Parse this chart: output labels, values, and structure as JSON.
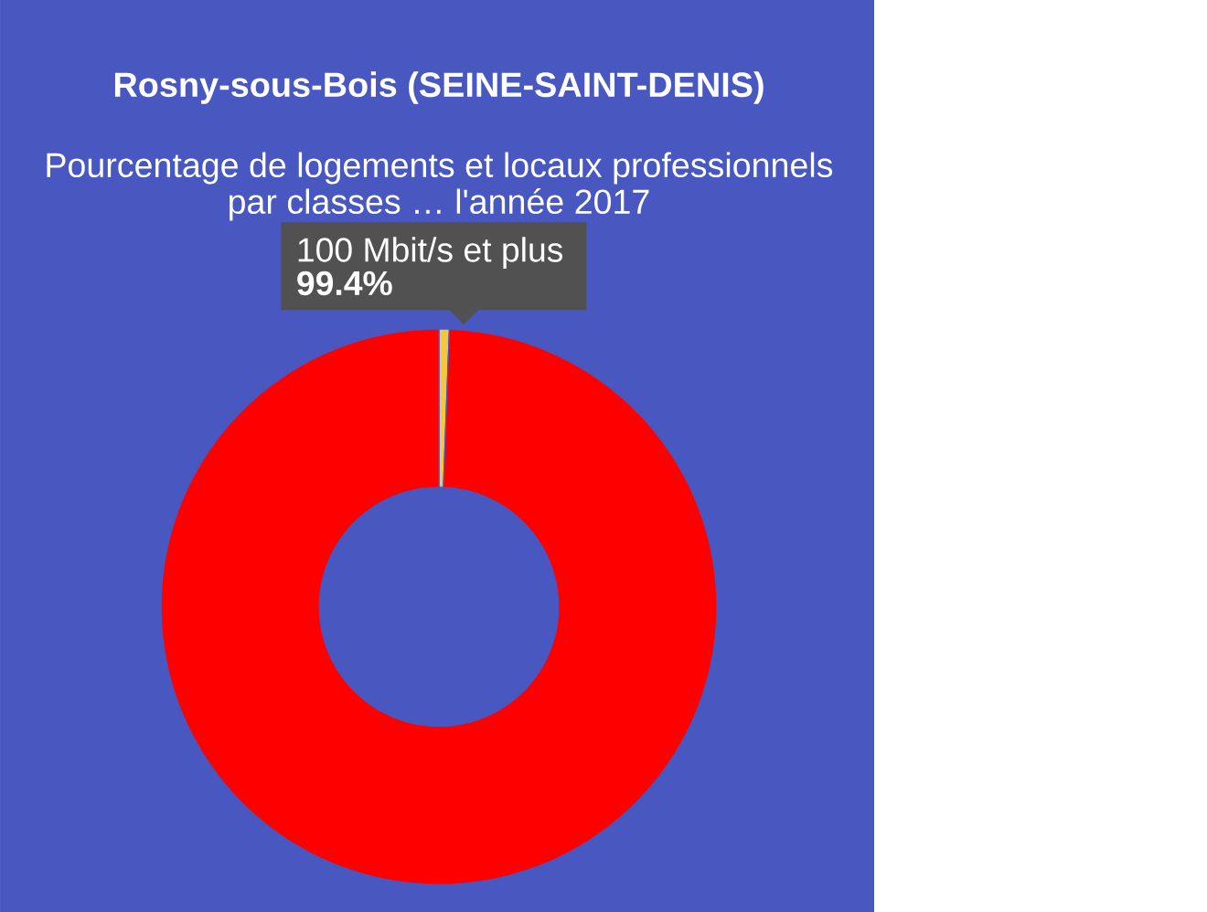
{
  "chart_data": {
    "type": "donut",
    "title": "Rosny-sous-Bois (SEINE-SAINT-DENIS)",
    "subtitle": "Pourcentage de logements et locaux professionnels par classes … l'année 2017",
    "categories": [
      null,
      "100 Mbit/s et plus"
    ],
    "values": [
      0.6,
      99.4
    ],
    "colors": [
      "#f2c744",
      "#ff0000"
    ],
    "value_labels": [
      null,
      "99.4%"
    ]
  }
}
